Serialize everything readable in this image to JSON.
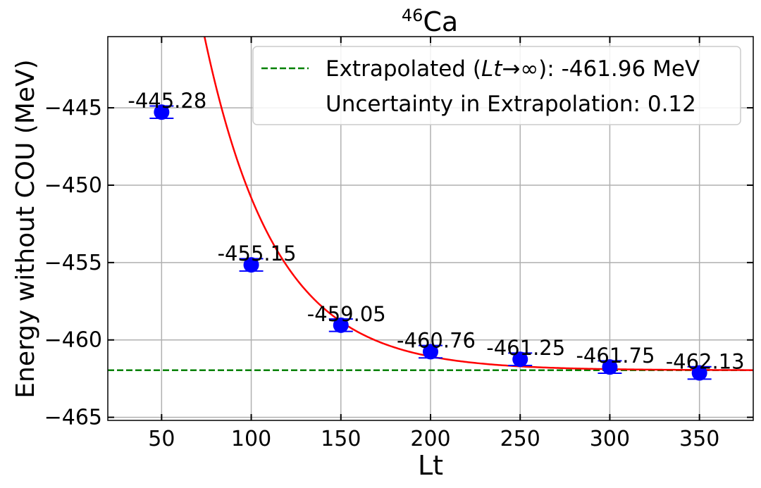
{
  "chart_data": {
    "type": "scatter",
    "title_sup": "46",
    "title_main": "Ca",
    "xlabel": "Lt",
    "ylabel": "Energy without COU (MeV)",
    "xlim": [
      20,
      380
    ],
    "ylim": [
      -465.2,
      -440.4
    ],
    "xticks": [
      50,
      100,
      150,
      200,
      250,
      300,
      350
    ],
    "yticks": [
      -445,
      -450,
      -455,
      -460,
      -465
    ],
    "grid": true,
    "points": [
      {
        "x": 50,
        "y": -445.28,
        "err": 0.4,
        "label": "-445.28"
      },
      {
        "x": 100,
        "y": -455.15,
        "err": 0.4,
        "label": "-455.15"
      },
      {
        "x": 150,
        "y": -459.05,
        "err": 0.4,
        "label": "-459.05"
      },
      {
        "x": 200,
        "y": -460.76,
        "err": 0.4,
        "label": "-460.76"
      },
      {
        "x": 250,
        "y": -461.25,
        "err": 0.4,
        "label": "-461.25"
      },
      {
        "x": 300,
        "y": -461.75,
        "err": 0.4,
        "label": "-461.75"
      },
      {
        "x": 350,
        "y": -462.13,
        "err": 0.4,
        "label": "-462.13"
      }
    ],
    "fit": {
      "asymptote": -461.96,
      "amplitude": 39.5,
      "rate": 0.0253
    },
    "extrapolated_value": -461.96,
    "legend": {
      "position": "top-right",
      "line_prefix": "Extrapolated (",
      "line_italic": "Lt",
      "line_suffix": "→∞): -461.96 MeV",
      "uncertainty_text": "Uncertainty in Extrapolation: 0.12"
    },
    "colors": {
      "points": "#0000ff",
      "fit": "#ff0000",
      "extrapolation": "#008000",
      "grid": "#b0b0b0"
    }
  }
}
